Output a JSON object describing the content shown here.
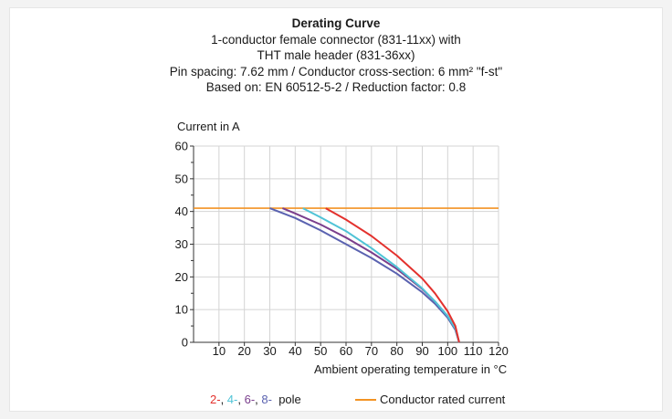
{
  "chart_data": {
    "type": "line",
    "title": "Derating Curve",
    "subtitle_lines": [
      "1-conductor female connector (831-11xx) with",
      "THT male header (831-36xx)",
      "Pin spacing: 7.62 mm / Conductor cross-section: 6 mm² \"f-st\"",
      "Based on: EN 60512-5-2 / Reduction factor: 0.8"
    ],
    "ylabel": "Current in A",
    "xlabel": "Ambient operating temperature in °C",
    "xlim": [
      0,
      120
    ],
    "ylim": [
      0,
      60
    ],
    "x_ticks": [
      10,
      20,
      30,
      40,
      50,
      60,
      70,
      80,
      90,
      100,
      110,
      120
    ],
    "y_ticks": [
      0,
      10,
      20,
      30,
      40,
      50,
      60
    ],
    "grid": true,
    "series": [
      {
        "name": "2-",
        "color": "#e3312d",
        "points": [
          [
            52,
            41
          ],
          [
            60,
            37.5
          ],
          [
            70,
            32.5
          ],
          [
            80,
            26.5
          ],
          [
            90,
            19.5
          ],
          [
            95,
            15
          ],
          [
            100,
            9.5
          ],
          [
            103,
            5
          ],
          [
            104.5,
            0
          ]
        ]
      },
      {
        "name": "4-",
        "color": "#4fc3d6",
        "points": [
          [
            43,
            41
          ],
          [
            50,
            38.2
          ],
          [
            60,
            34
          ],
          [
            70,
            28.8
          ],
          [
            80,
            23
          ],
          [
            90,
            16.5
          ],
          [
            95,
            12.5
          ],
          [
            100,
            8
          ],
          [
            103,
            4.2
          ],
          [
            104.5,
            0
          ]
        ]
      },
      {
        "name": "6-",
        "color": "#7a3e8c",
        "points": [
          [
            35,
            41
          ],
          [
            40,
            39.4
          ],
          [
            50,
            36
          ],
          [
            60,
            32
          ],
          [
            70,
            27.5
          ],
          [
            80,
            22.4
          ],
          [
            90,
            16.3
          ],
          [
            95,
            12.5
          ],
          [
            100,
            8
          ],
          [
            103,
            4.2
          ],
          [
            104.5,
            0
          ]
        ]
      },
      {
        "name": "8-",
        "color": "#5a62b0",
        "points": [
          [
            30,
            41
          ],
          [
            40,
            38
          ],
          [
            50,
            34.2
          ],
          [
            60,
            30
          ],
          [
            70,
            25.8
          ],
          [
            80,
            21
          ],
          [
            90,
            15.3
          ],
          [
            95,
            11.8
          ],
          [
            100,
            7.5
          ],
          [
            103,
            3.8
          ],
          [
            104.5,
            0
          ]
        ]
      }
    ],
    "rated_current": {
      "name": "Conductor rated current",
      "value": 41,
      "color": "#f39323"
    },
    "legend": {
      "poles": [
        {
          "label": "2-",
          "color": "#e3312d"
        },
        {
          "label": "4-",
          "color": "#4fc3d6"
        },
        {
          "label": "6-",
          "color": "#7a3e8c"
        },
        {
          "label": "8-",
          "color": "#5a62b0"
        }
      ],
      "poles_suffix": "pole",
      "rated_label": "Conductor rated current"
    }
  }
}
